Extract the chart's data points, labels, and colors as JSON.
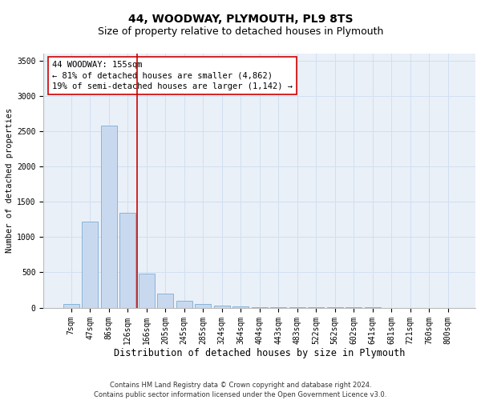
{
  "title1": "44, WOODWAY, PLYMOUTH, PL9 8TS",
  "title2": "Size of property relative to detached houses in Plymouth",
  "xlabel": "Distribution of detached houses by size in Plymouth",
  "ylabel": "Number of detached properties",
  "bins": [
    "7sqm",
    "47sqm",
    "86sqm",
    "126sqm",
    "166sqm",
    "205sqm",
    "245sqm",
    "285sqm",
    "324sqm",
    "364sqm",
    "404sqm",
    "443sqm",
    "483sqm",
    "522sqm",
    "562sqm",
    "602sqm",
    "641sqm",
    "681sqm",
    "721sqm",
    "760sqm",
    "800sqm"
  ],
  "bar_heights": [
    50,
    1220,
    2580,
    1340,
    480,
    200,
    100,
    50,
    30,
    18,
    10,
    5,
    5,
    3,
    2,
    1,
    1,
    0,
    0,
    0,
    0
  ],
  "bar_color": "#c8d9ef",
  "bar_edge_color": "#7aadd4",
  "ylim": [
    0,
    3600
  ],
  "yticks": [
    0,
    500,
    1000,
    1500,
    2000,
    2500,
    3000,
    3500
  ],
  "vline_color": "#cc0000",
  "annotation_line1": "44 WOODWAY: 155sqm",
  "annotation_line2": "← 81% of detached houses are smaller (4,862)",
  "annotation_line3": "19% of semi-detached houses are larger (1,142) →",
  "annotation_box_color": "#ffffff",
  "annotation_box_edge": "#cc0000",
  "footer1": "Contains HM Land Registry data © Crown copyright and database right 2024.",
  "footer2": "Contains public sector information licensed under the Open Government Licence v3.0.",
  "grid_color": "#d0dff0",
  "bg_color": "#eaf0f8",
  "title1_fontsize": 10,
  "title2_fontsize": 9,
  "xlabel_fontsize": 8.5,
  "ylabel_fontsize": 7.5,
  "tick_fontsize": 7,
  "annot_fontsize": 7.5,
  "footer_fontsize": 6
}
